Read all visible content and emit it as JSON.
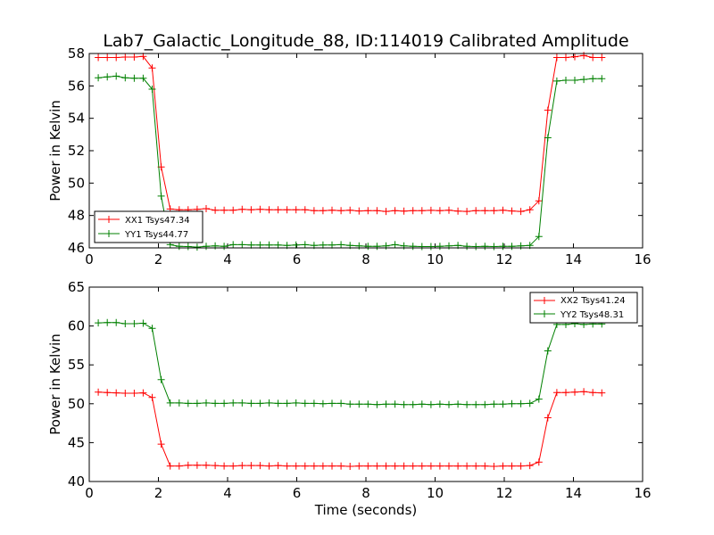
{
  "chart_data": [
    {
      "type": "line",
      "title": "Lab7_Galactic_Longitude_88, ID:114019 Calibrated Amplitude",
      "xlabel": "",
      "ylabel": "Power in Kelvin",
      "xlim": [
        0,
        16
      ],
      "ylim": [
        46,
        58
      ],
      "xticks": [
        "0",
        "2",
        "4",
        "6",
        "8",
        "10",
        "12",
        "14",
        "16"
      ],
      "yticks": [
        "46",
        "48",
        "50",
        "52",
        "54",
        "56",
        "58"
      ],
      "legend_position": "lower-left",
      "grid": false,
      "x": [
        0.26,
        0.52,
        0.78,
        1.04,
        1.3,
        1.56,
        1.82,
        2.08,
        2.34,
        2.6,
        2.86,
        3.12,
        3.38,
        3.64,
        3.9,
        4.16,
        4.42,
        4.68,
        4.94,
        5.2,
        5.46,
        5.72,
        5.98,
        6.24,
        6.5,
        6.76,
        7.02,
        7.28,
        7.54,
        7.8,
        8.06,
        8.32,
        8.58,
        8.84,
        9.1,
        9.36,
        9.62,
        9.88,
        10.14,
        10.4,
        10.66,
        10.92,
        11.18,
        11.44,
        11.7,
        11.96,
        12.22,
        12.48,
        12.74,
        13.0,
        13.26,
        13.52,
        13.78,
        14.04,
        14.3,
        14.56,
        14.82
      ],
      "series": [
        {
          "name": "XX1 Tsys47.34",
          "color": "#ff0000",
          "values": [
            57.75,
            57.75,
            57.75,
            57.78,
            57.78,
            57.82,
            57.1,
            51.0,
            48.4,
            48.35,
            48.35,
            48.38,
            48.42,
            48.33,
            48.33,
            48.33,
            48.38,
            48.35,
            48.38,
            48.35,
            48.35,
            48.35,
            48.35,
            48.35,
            48.3,
            48.3,
            48.33,
            48.3,
            48.33,
            48.28,
            48.3,
            48.3,
            48.25,
            48.3,
            48.27,
            48.3,
            48.3,
            48.32,
            48.3,
            48.33,
            48.27,
            48.25,
            48.3,
            48.3,
            48.3,
            48.33,
            48.28,
            48.25,
            48.35,
            48.9,
            54.5,
            57.75,
            57.75,
            57.8,
            57.88,
            57.75,
            57.75
          ]
        },
        {
          "name": "YY1 Tsys44.77",
          "color": "#008000",
          "values": [
            56.5,
            56.55,
            56.6,
            56.5,
            56.47,
            56.47,
            55.8,
            49.2,
            46.2,
            46.1,
            46.08,
            46.05,
            46.1,
            46.12,
            46.1,
            46.2,
            46.2,
            46.18,
            46.18,
            46.18,
            46.18,
            46.15,
            46.18,
            46.2,
            46.15,
            46.18,
            46.18,
            46.2,
            46.15,
            46.12,
            46.1,
            46.1,
            46.12,
            46.2,
            46.12,
            46.1,
            46.08,
            46.08,
            46.1,
            46.12,
            46.15,
            46.1,
            46.08,
            46.1,
            46.08,
            46.1,
            46.1,
            46.12,
            46.15,
            46.7,
            52.8,
            56.3,
            56.35,
            56.35,
            56.4,
            56.45,
            56.45
          ]
        }
      ]
    },
    {
      "type": "line",
      "title": "",
      "xlabel": "Time (seconds)",
      "ylabel": "Power in Kelvin",
      "xlim": [
        0,
        16
      ],
      "ylim": [
        40,
        65
      ],
      "xticks": [
        "0",
        "2",
        "4",
        "6",
        "8",
        "10",
        "12",
        "14",
        "16"
      ],
      "yticks": [
        "40",
        "45",
        "50",
        "55",
        "60",
        "65"
      ],
      "legend_position": "upper-right",
      "grid": false,
      "x": [
        0.26,
        0.52,
        0.78,
        1.04,
        1.3,
        1.56,
        1.82,
        2.08,
        2.34,
        2.6,
        2.86,
        3.12,
        3.38,
        3.64,
        3.9,
        4.16,
        4.42,
        4.68,
        4.94,
        5.2,
        5.46,
        5.72,
        5.98,
        6.24,
        6.5,
        6.76,
        7.02,
        7.28,
        7.54,
        7.8,
        8.06,
        8.32,
        8.58,
        8.84,
        9.1,
        9.36,
        9.62,
        9.88,
        10.14,
        10.4,
        10.66,
        10.92,
        11.18,
        11.44,
        11.7,
        11.96,
        12.22,
        12.48,
        12.74,
        13.0,
        13.26,
        13.52,
        13.78,
        14.04,
        14.3,
        14.56,
        14.82
      ],
      "series": [
        {
          "name": "XX2 Tsys41.24",
          "color": "#ff0000",
          "values": [
            51.5,
            51.45,
            51.4,
            51.35,
            51.35,
            51.4,
            50.8,
            44.8,
            42.0,
            42.0,
            42.1,
            42.1,
            42.1,
            42.05,
            42.0,
            42.0,
            42.05,
            42.05,
            42.05,
            42.0,
            42.05,
            42.0,
            42.0,
            42.0,
            42.0,
            42.0,
            42.0,
            42.0,
            41.95,
            42.0,
            42.0,
            42.0,
            42.0,
            42.0,
            42.0,
            42.0,
            42.0,
            42.0,
            42.0,
            42.0,
            42.0,
            42.0,
            42.0,
            42.0,
            41.95,
            42.0,
            42.0,
            42.0,
            42.05,
            42.5,
            48.2,
            51.45,
            51.45,
            51.5,
            51.55,
            51.45,
            51.4
          ]
        },
        {
          "name": "YY2 Tsys48.31",
          "color": "#008000",
          "values": [
            60.4,
            60.45,
            60.45,
            60.3,
            60.3,
            60.35,
            59.7,
            53.1,
            50.1,
            50.1,
            50.05,
            50.05,
            50.1,
            50.05,
            50.05,
            50.1,
            50.1,
            50.05,
            50.05,
            50.1,
            50.05,
            50.05,
            50.1,
            50.05,
            50.05,
            50.0,
            50.05,
            50.05,
            49.95,
            49.95,
            49.95,
            49.9,
            49.95,
            49.95,
            49.9,
            49.9,
            49.95,
            49.9,
            49.95,
            49.9,
            49.95,
            49.9,
            49.9,
            49.9,
            49.95,
            49.95,
            50.0,
            50.0,
            50.05,
            50.6,
            56.8,
            60.2,
            60.2,
            60.3,
            60.2,
            60.25,
            60.25
          ]
        }
      ]
    }
  ]
}
